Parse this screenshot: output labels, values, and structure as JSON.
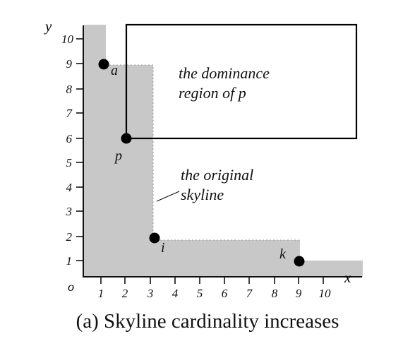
{
  "diagram": {
    "axes": {
      "x_label": "x",
      "y_label": "y",
      "origin_label": "o",
      "x_ticks": [
        "1",
        "2",
        "3",
        "4",
        "5",
        "6",
        "7",
        "8",
        "9",
        "10"
      ],
      "y_ticks": [
        "1",
        "2",
        "3",
        "4",
        "5",
        "6",
        "7",
        "8",
        "9",
        "10"
      ]
    },
    "points": [
      {
        "id": "a",
        "label": "a",
        "x": 1,
        "y": 9
      },
      {
        "id": "p",
        "label": "p",
        "x": 2,
        "y": 6
      },
      {
        "id": "i",
        "label": "i",
        "x": 3,
        "y": 2
      },
      {
        "id": "k",
        "label": "k",
        "x": 9,
        "y": 1
      }
    ],
    "annotations": {
      "dominance_region_line1": "the dominance",
      "dominance_region_line2": "region of p",
      "original_skyline_line1": "the original",
      "original_skyline_line2": "skyline"
    },
    "caption": "(a) Skyline cardinality increases",
    "colors": {
      "shaded_region": "#c8c8c8",
      "points": "#000000",
      "dominance_box": "#000000"
    }
  }
}
